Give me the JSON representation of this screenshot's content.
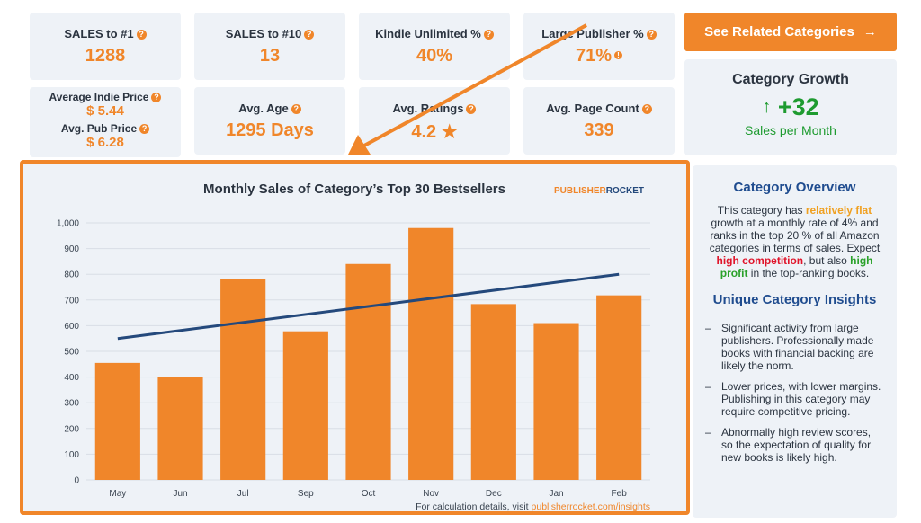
{
  "stats": [
    {
      "label": "SALES to #1",
      "value": "1288"
    },
    {
      "label": "SALES to #10",
      "value": "13"
    },
    {
      "label": "Kindle Unlimited %",
      "value": "40%"
    },
    {
      "label": "Large Publisher %",
      "value": "71%"
    }
  ],
  "stats2": {
    "indie_label": "Average Indie Price",
    "indie_value": "$ 5.44",
    "pub_label": "Avg. Pub Price",
    "pub_value": "$ 6.28",
    "age_label": "Avg. Age",
    "age_value": "1295 Days",
    "ratings_label": "Avg. Ratings",
    "ratings_value": "4.2",
    "star": "★",
    "pages_label": "Avg. Page Count",
    "pages_value": "339"
  },
  "button": {
    "label": "See Related Categories",
    "arrow": "→"
  },
  "growth": {
    "title": "Category Growth",
    "arrow": "↑",
    "value": "+32",
    "sub": "Sales per Month"
  },
  "overview": {
    "title": "Category Overview",
    "t1": "This category has ",
    "t2": "relatively flat",
    "t3": " growth at a monthly rate of 4% and ranks in the top 20 % of all Amazon categories in terms of sales. Expect ",
    "t4": "high competition",
    "t5": ", but also ",
    "t6": "high profit",
    "t7": " in the top-ranking books."
  },
  "insights": {
    "title": "Unique Category Insights",
    "items": [
      "Significant activity from large publishers. Professionally made books with financial backing are likely the norm.",
      "Lower prices, with lower margins. Publishing in this category may require competitive pricing.",
      "Abnormally high review scores, so the expectation of quality for new books is likely high."
    ]
  },
  "brand": {
    "part1": "PUBLISHER",
    "part2": "ROCKET"
  },
  "footnote": {
    "text": "For calculation details, visit ",
    "link": "publisherrocket.com/insights"
  },
  "colors": {
    "accent": "#f0862a",
    "trend": "#24497c",
    "green": "#1e9b30",
    "navy": "#1f4c8f"
  },
  "chart_data": {
    "type": "bar",
    "title": "Monthly Sales of Category’s Top 30 Bestsellers",
    "categories": [
      "May",
      "Jun",
      "Jul",
      "Sep",
      "Oct",
      "Nov",
      "Dec",
      "Jan",
      "Feb"
    ],
    "values": [
      455,
      400,
      780,
      578,
      840,
      980,
      684,
      610,
      718
    ],
    "trend": {
      "start": 550,
      "end": 800
    },
    "ylim": [
      0,
      1000
    ],
    "yticks": [
      0,
      100,
      200,
      300,
      400,
      500,
      600,
      700,
      800,
      900,
      1000
    ],
    "ytick_labels": [
      "0",
      "100",
      "200",
      "300",
      "400",
      "500",
      "600",
      "700",
      "800",
      "900",
      "1,000"
    ],
    "xlabel": "",
    "ylabel": ""
  }
}
